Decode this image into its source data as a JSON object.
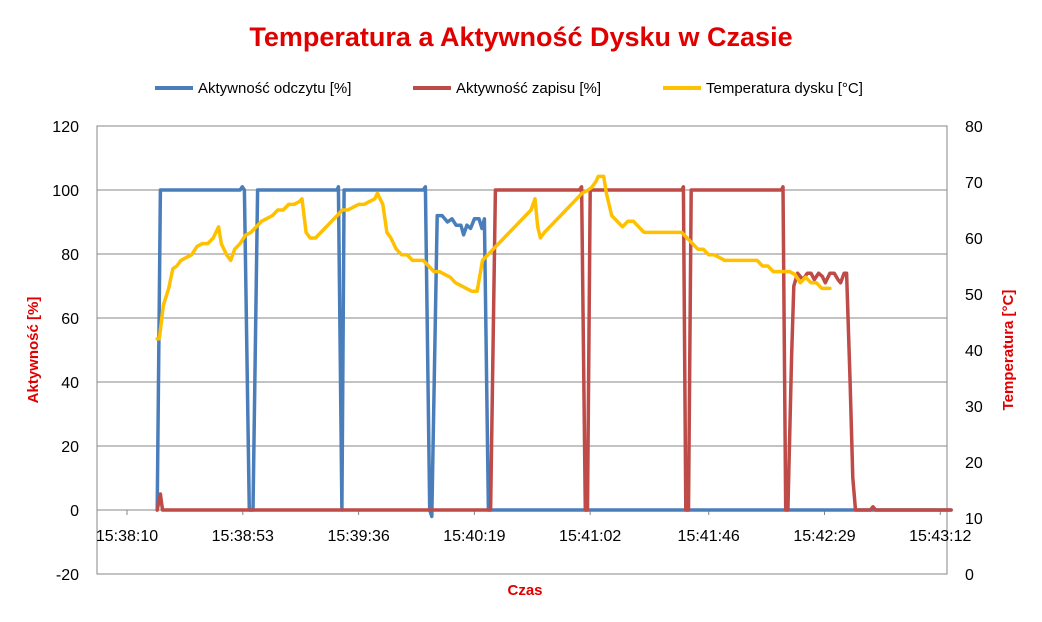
{
  "chart_data": {
    "type": "line",
    "title": "Temperatura a Aktywność Dysku w Czasie",
    "title_color": "#e00000",
    "axis_title_color": "#e00000",
    "xlabel": "Czas",
    "ylabel_left": "Aktywność [%]",
    "ylabel_right": "Temperatura [°C]",
    "x_range_seconds": [
      0,
      300
    ],
    "ylim_left": [
      -20,
      120
    ],
    "ylim_right": [
      0,
      80
    ],
    "yticks_left": [
      -20,
      0,
      20,
      40,
      60,
      80,
      100,
      120
    ],
    "yticks_right": [
      0,
      10,
      20,
      30,
      40,
      50,
      60,
      70,
      80
    ],
    "xticks": [
      {
        "t": 0,
        "label": "15:38:10"
      },
      {
        "t": 43,
        "label": "15:38:53"
      },
      {
        "t": 86,
        "label": "15:39:36"
      },
      {
        "t": 129,
        "label": "15:40:19"
      },
      {
        "t": 172,
        "label": "15:41:02"
      },
      {
        "t": 216,
        "label": "15:41:46"
      },
      {
        "t": 259,
        "label": "15:42:29"
      },
      {
        "t": 302,
        "label": "15:43:12"
      }
    ],
    "grid": "horizontal",
    "legend_position": "top",
    "series": [
      {
        "name": "Aktywność odczytu [%]",
        "axis": "left",
        "color": "#4a7ebb",
        "points": [
          [
            11.2,
            0
          ],
          [
            12.4,
            100
          ],
          [
            42,
            100
          ],
          [
            42.8,
            101
          ],
          [
            43.6,
            100
          ],
          [
            45.4,
            0
          ],
          [
            46.8,
            0
          ],
          [
            48.5,
            100
          ],
          [
            78,
            100
          ],
          [
            78.5,
            101
          ],
          [
            79.8,
            0
          ],
          [
            80.6,
            100
          ],
          [
            110,
            100
          ],
          [
            110.8,
            101
          ],
          [
            112.4,
            0
          ],
          [
            113.2,
            -2
          ],
          [
            115.2,
            92
          ],
          [
            117,
            92
          ],
          [
            119,
            90
          ],
          [
            120.7,
            91
          ],
          [
            122.2,
            89
          ],
          [
            124,
            89
          ],
          [
            125,
            86
          ],
          [
            126.2,
            89
          ],
          [
            127.6,
            88
          ],
          [
            129,
            91
          ],
          [
            130.7,
            91
          ],
          [
            131.8,
            88
          ],
          [
            132.7,
            91
          ],
          [
            134.2,
            0
          ],
          [
            160,
            0
          ],
          [
            180,
            0
          ],
          [
            210,
            0
          ],
          [
            240,
            0
          ],
          [
            270,
            0
          ],
          [
            299,
            0
          ],
          [
            306,
            0
          ]
        ]
      },
      {
        "name": "Aktywność zapisu [%]",
        "axis": "left",
        "color": "#be4b48",
        "points": [
          [
            11.2,
            0
          ],
          [
            12.4,
            5
          ],
          [
            13.2,
            0
          ],
          [
            135,
            0
          ],
          [
            136.8,
            100
          ],
          [
            168,
            100
          ],
          [
            168.8,
            101
          ],
          [
            170.2,
            0
          ],
          [
            171,
            0
          ],
          [
            172,
            100
          ],
          [
            206,
            100
          ],
          [
            206.6,
            101
          ],
          [
            207.5,
            0
          ],
          [
            208.5,
            0
          ],
          [
            209.5,
            100
          ],
          [
            243,
            100
          ],
          [
            243.6,
            101
          ],
          [
            244.6,
            0
          ],
          [
            245.4,
            0
          ],
          [
            246.8,
            48
          ],
          [
            247.6,
            70
          ],
          [
            249,
            74
          ],
          [
            251,
            72
          ],
          [
            252.6,
            74
          ],
          [
            254,
            74
          ],
          [
            255.2,
            72
          ],
          [
            256.8,
            74
          ],
          [
            258.2,
            73
          ],
          [
            259.3,
            71
          ],
          [
            261,
            74
          ],
          [
            262.6,
            74
          ],
          [
            264,
            72
          ],
          [
            265,
            71
          ],
          [
            266.3,
            74
          ],
          [
            267.2,
            74
          ],
          [
            268.5,
            40
          ],
          [
            269.5,
            10
          ],
          [
            270.5,
            0
          ],
          [
            276,
            0
          ],
          [
            277,
            1
          ],
          [
            278,
            0
          ],
          [
            306,
            0
          ]
        ]
      },
      {
        "name": "Temperatura dysku [°C]",
        "axis": "right",
        "color": "#ffc000",
        "points": [
          [
            11.2,
            42
          ],
          [
            12,
            42
          ],
          [
            13.5,
            48
          ],
          [
            15.5,
            51
          ],
          [
            17,
            54.5
          ],
          [
            18.5,
            55
          ],
          [
            20,
            56
          ],
          [
            22,
            56.5
          ],
          [
            24,
            57
          ],
          [
            26,
            58.5
          ],
          [
            28,
            59
          ],
          [
            30,
            59
          ],
          [
            32,
            60
          ],
          [
            34,
            62
          ],
          [
            35,
            59
          ],
          [
            36,
            58
          ],
          [
            37,
            57
          ],
          [
            38.5,
            56
          ],
          [
            40,
            58
          ],
          [
            42,
            59
          ],
          [
            44,
            60.5
          ],
          [
            46,
            61
          ],
          [
            48,
            62
          ],
          [
            50,
            63
          ],
          [
            52,
            63.5
          ],
          [
            54,
            64
          ],
          [
            56,
            65
          ],
          [
            58,
            65
          ],
          [
            60,
            66
          ],
          [
            62,
            66
          ],
          [
            64,
            66.5
          ],
          [
            65,
            67
          ],
          [
            66.5,
            61
          ],
          [
            68,
            60
          ],
          [
            70,
            60
          ],
          [
            72,
            61
          ],
          [
            74,
            62
          ],
          [
            76,
            63
          ],
          [
            78,
            64
          ],
          [
            80,
            65
          ],
          [
            82,
            65
          ],
          [
            84,
            65.5
          ],
          [
            86,
            66
          ],
          [
            88,
            66
          ],
          [
            90,
            66.5
          ],
          [
            92,
            67
          ],
          [
            93,
            68
          ],
          [
            95,
            66
          ],
          [
            96.5,
            61
          ],
          [
            98,
            60
          ],
          [
            100,
            58
          ],
          [
            102,
            57
          ],
          [
            104,
            57
          ],
          [
            106,
            56
          ],
          [
            108,
            56
          ],
          [
            110,
            56
          ],
          [
            112,
            55
          ],
          [
            114,
            54
          ],
          [
            116,
            54
          ],
          [
            118,
            53.5
          ],
          [
            120,
            53
          ],
          [
            122,
            52
          ],
          [
            124,
            51.5
          ],
          [
            126,
            51
          ],
          [
            128,
            50.5
          ],
          [
            130,
            50.5
          ],
          [
            132,
            56
          ],
          [
            134,
            57
          ],
          [
            136,
            58
          ],
          [
            138,
            59
          ],
          [
            140,
            60
          ],
          [
            142,
            61
          ],
          [
            144,
            62
          ],
          [
            146,
            63
          ],
          [
            148,
            64
          ],
          [
            150,
            65
          ],
          [
            151.5,
            67
          ],
          [
            152.5,
            62
          ],
          [
            153.5,
            60
          ],
          [
            155,
            61
          ],
          [
            157,
            62
          ],
          [
            159,
            63
          ],
          [
            161,
            64
          ],
          [
            163,
            65
          ],
          [
            165,
            66
          ],
          [
            167,
            67
          ],
          [
            169,
            68
          ],
          [
            171,
            68.5
          ],
          [
            172.5,
            69
          ],
          [
            174,
            70
          ],
          [
            175,
            71
          ],
          [
            177,
            71
          ],
          [
            178,
            68
          ],
          [
            180,
            64
          ],
          [
            182,
            63
          ],
          [
            184,
            62
          ],
          [
            186,
            63
          ],
          [
            188,
            63
          ],
          [
            190,
            62
          ],
          [
            192,
            61
          ],
          [
            194,
            61
          ],
          [
            200,
            61
          ],
          [
            206,
            61
          ],
          [
            208,
            60
          ],
          [
            210,
            59
          ],
          [
            212,
            58
          ],
          [
            214,
            58
          ],
          [
            216,
            57
          ],
          [
            218,
            57
          ],
          [
            220,
            56.5
          ],
          [
            222,
            56
          ],
          [
            226,
            56
          ],
          [
            230,
            56
          ],
          [
            234,
            56
          ],
          [
            236,
            55
          ],
          [
            238,
            55
          ],
          [
            240,
            54
          ],
          [
            244,
            54
          ],
          [
            246,
            54
          ],
          [
            248,
            53.5
          ],
          [
            250,
            52
          ],
          [
            252,
            53
          ],
          [
            254,
            52
          ],
          [
            256,
            52
          ],
          [
            258,
            51
          ],
          [
            261,
            51
          ]
        ]
      }
    ]
  }
}
